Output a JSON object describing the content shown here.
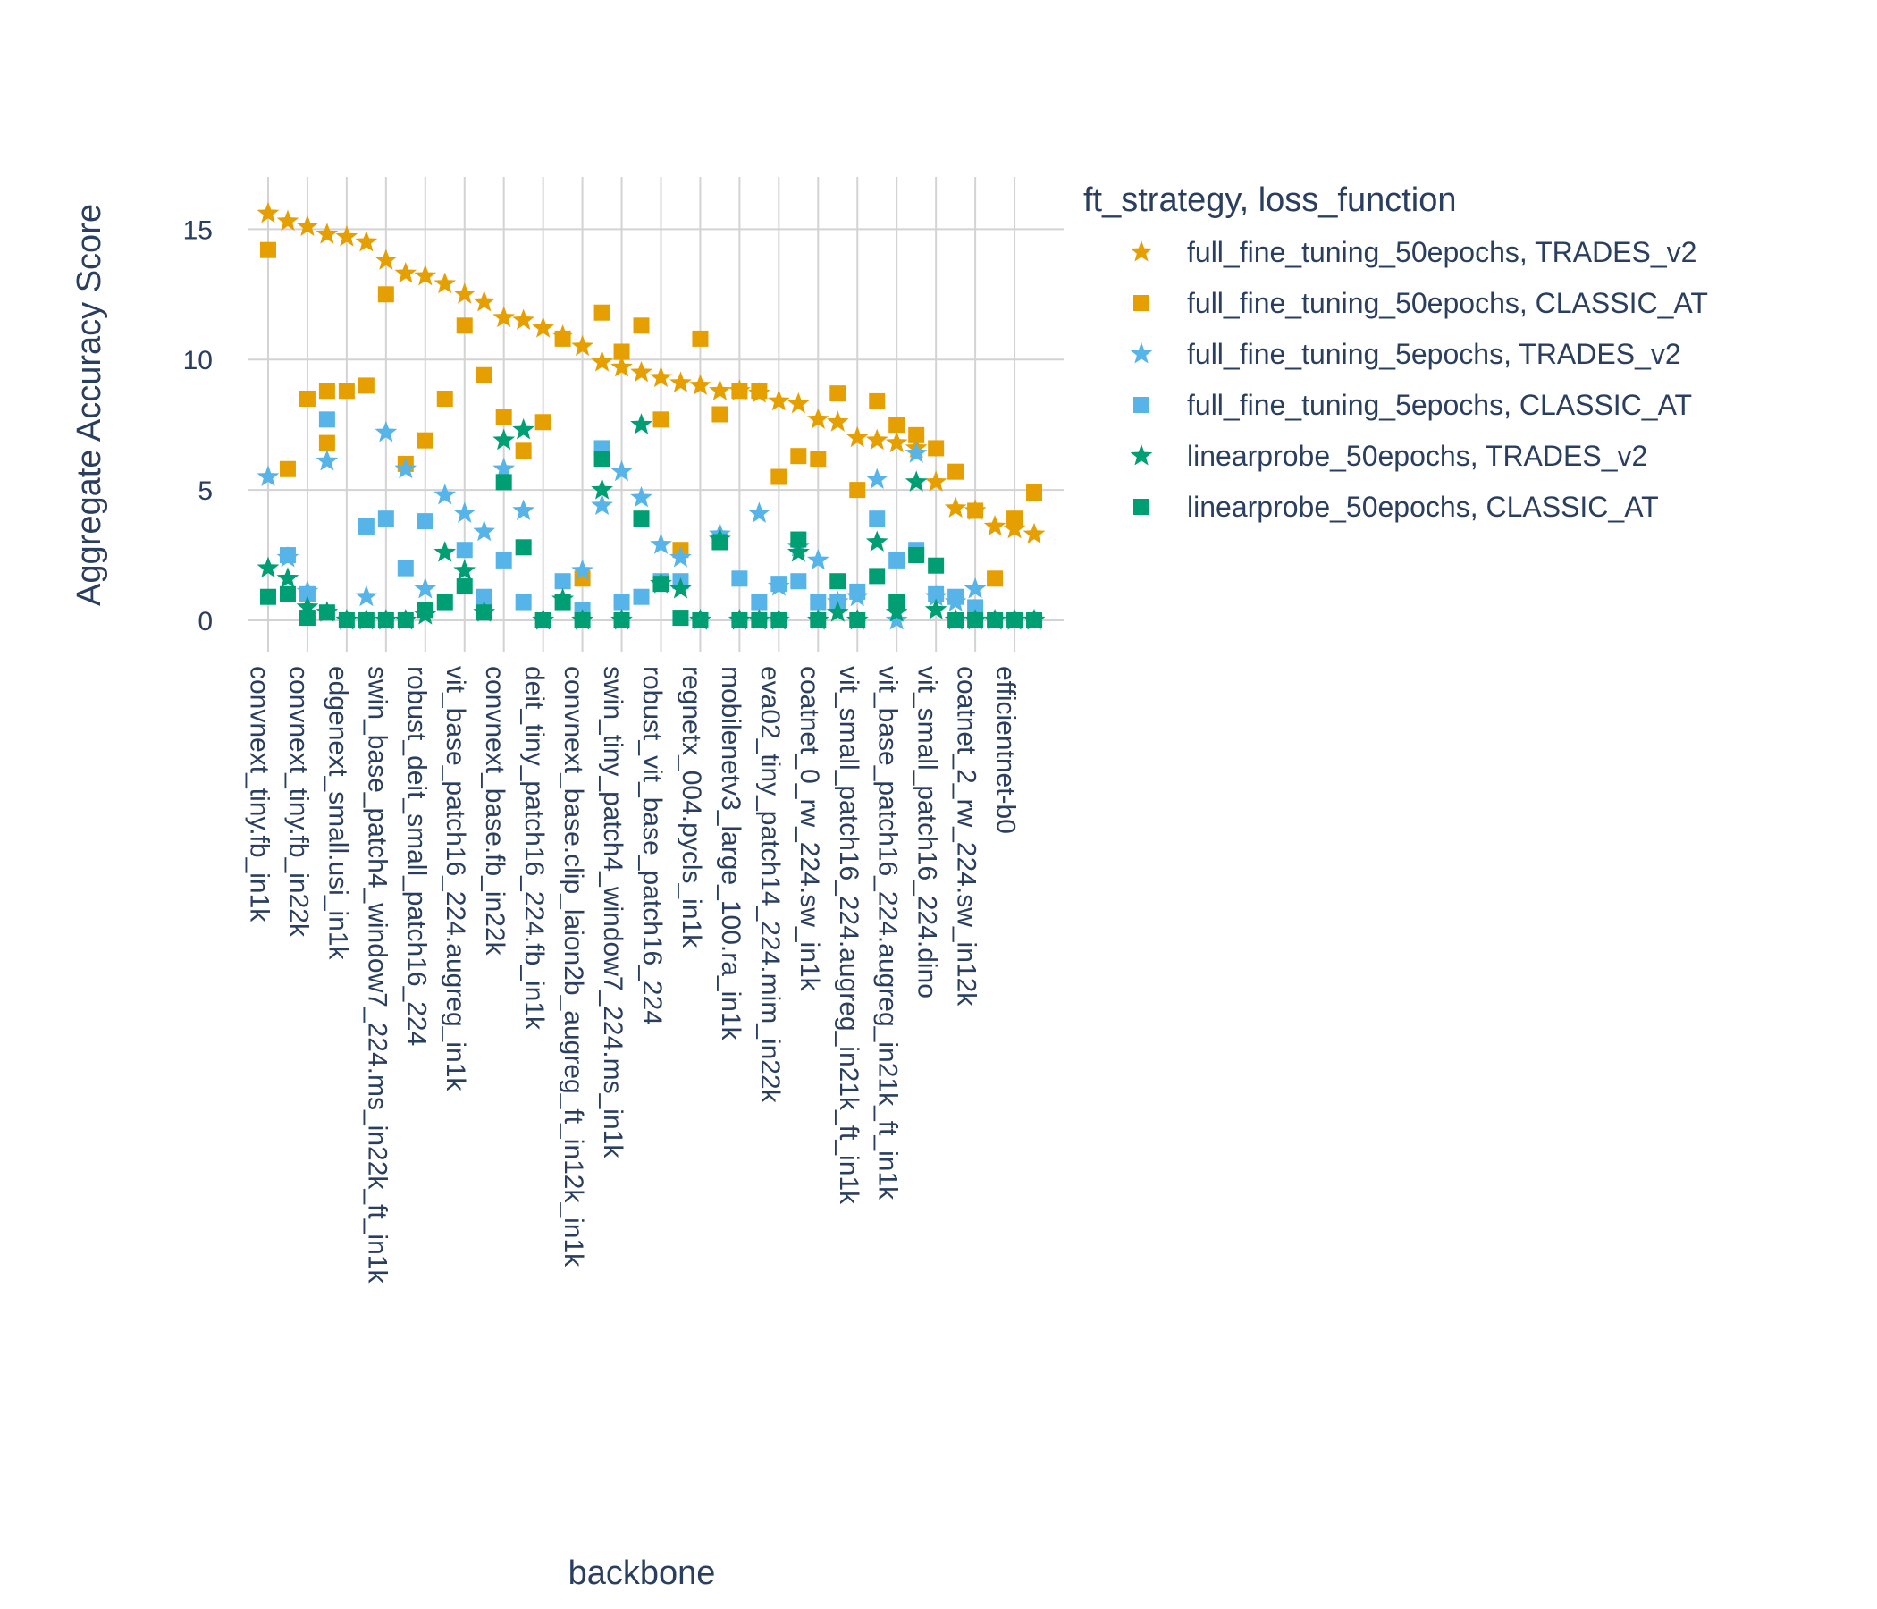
{
  "chart_data": {
    "type": "scatter",
    "title": "",
    "xlabel": "backbone",
    "ylabel": "Aggregate Accuracy Score",
    "ylim": [
      -1.2,
      17
    ],
    "yticks": [
      0,
      5,
      10,
      15
    ],
    "grid": true,
    "legend_position": "right",
    "legend_title": "ft_strategy, loss_function",
    "x_tick_labels": [
      "convnext_tiny.fb_in1k",
      "convnext_tiny.fb_in22k",
      "edgenext_small.usi_in1k",
      "swin_base_patch4_window7_224.ms_in22k_ft_in1k",
      "robust_deit_small_patch16_224",
      "vit_base_patch16_224.augreg_in1k",
      "convnext_base.fb_in22k",
      "deit_tiny_patch16_224.fb_in1k",
      "convnext_base.clip_laion2b_augreg_ft_in12k_in1k",
      "swin_tiny_patch4_window7_224.ms_in1k",
      "robust_vit_base_patch16_224",
      "regnetx_004.pycls_in1k",
      "mobilenetv3_large_100.ra_in1k",
      "eva02_tiny_patch14_224.mim_in22k",
      "coatnet_0_rw_224.sw_in1k",
      "vit_small_patch16_224.augreg_in21k_ft_in1k",
      "vit_base_patch16_224.augreg_in21k_ft_in1k",
      "vit_small_patch16_224.dino",
      "coatnet_2_rw_224.sw_in12k",
      "efficientnet-b0"
    ],
    "x_tick_positions": [
      0,
      2,
      4,
      6,
      8,
      10,
      12,
      14,
      16,
      18,
      20,
      22,
      24,
      26,
      28,
      30,
      32,
      34,
      36,
      38
    ],
    "xlim": [
      -1,
      40.5
    ],
    "series": [
      {
        "name": "full_fine_tuning_50epochs, TRADES_v2",
        "symbol": "star",
        "color": "#e69f00",
        "x": [
          0,
          1,
          2,
          3,
          4,
          5,
          6,
          7,
          8,
          9,
          10,
          11,
          12,
          13,
          14,
          15,
          16,
          17,
          18,
          19,
          20,
          21,
          22,
          23,
          24,
          25,
          26,
          27,
          28,
          29,
          30,
          31,
          32,
          33,
          34,
          35,
          36,
          37,
          38,
          39
        ],
        "y": [
          15.6,
          15.3,
          15.1,
          14.8,
          14.7,
          14.5,
          13.8,
          13.3,
          13.2,
          12.9,
          12.5,
          12.2,
          11.6,
          11.5,
          11.2,
          10.9,
          10.5,
          9.9,
          9.7,
          9.5,
          9.3,
          9.1,
          9.0,
          8.8,
          8.8,
          8.7,
          8.4,
          8.3,
          7.7,
          7.6,
          7.0,
          6.9,
          6.8,
          6.6,
          5.3,
          4.3,
          4.2,
          3.6,
          3.5,
          3.3
        ]
      },
      {
        "name": "full_fine_tuning_50epochs, CLASSIC_AT",
        "symbol": "square",
        "color": "#e69f00",
        "x": [
          0,
          1,
          2,
          3,
          3,
          4,
          5,
          6,
          7,
          8,
          9,
          10,
          11,
          12,
          13,
          14,
          15,
          16,
          17,
          18,
          19,
          20,
          21,
          22,
          23,
          24,
          25,
          26,
          27,
          28,
          29,
          30,
          31,
          32,
          33,
          34,
          35,
          36,
          37,
          38,
          39
        ],
        "y": [
          14.2,
          5.8,
          8.5,
          6.8,
          8.8,
          8.8,
          9.0,
          12.5,
          6.0,
          6.9,
          8.5,
          11.3,
          9.4,
          7.8,
          6.5,
          7.6,
          10.8,
          1.6,
          11.8,
          10.3,
          11.3,
          7.7,
          2.7,
          10.8,
          7.9,
          8.8,
          8.8,
          5.5,
          6.3,
          6.2,
          8.7,
          5.0,
          8.4,
          7.5,
          7.1,
          6.6,
          5.7,
          4.2,
          1.6,
          3.9,
          4.9
        ]
      },
      {
        "name": "full_fine_tuning_5epochs, TRADES_v2",
        "symbol": "star",
        "color": "#56b4e9",
        "x": [
          0,
          1,
          2,
          3,
          4,
          5,
          6,
          7,
          8,
          9,
          10,
          11,
          12,
          13,
          14,
          15,
          16,
          17,
          18,
          19,
          20,
          21,
          22,
          23,
          24,
          25,
          26,
          27,
          28,
          29,
          30,
          31,
          32,
          33,
          34,
          35,
          36,
          37,
          38,
          39
        ],
        "y": [
          5.5,
          2.4,
          1.1,
          6.1,
          0.0,
          0.9,
          7.2,
          5.8,
          1.2,
          4.8,
          4.1,
          3.4,
          5.8,
          4.2,
          0.0,
          0.8,
          1.9,
          4.4,
          5.7,
          4.7,
          2.9,
          2.4,
          0.0,
          3.3,
          0.0,
          4.1,
          1.3,
          2.8,
          2.3,
          0.7,
          0.9,
          5.4,
          0.0,
          6.4,
          0.9,
          0.7,
          1.2,
          0.0,
          0.0,
          0.0
        ]
      },
      {
        "name": "full_fine_tuning_5epochs, CLASSIC_AT",
        "symbol": "square",
        "color": "#56b4e9",
        "x": [
          1,
          2,
          3,
          5,
          6,
          7,
          8,
          10,
          11,
          12,
          13,
          15,
          16,
          17,
          18,
          19,
          20,
          21,
          22,
          24,
          25,
          26,
          27,
          28,
          29,
          30,
          31,
          32,
          33,
          34,
          35,
          36
        ],
        "y": [
          2.5,
          1.0,
          7.7,
          3.6,
          3.9,
          2.0,
          3.8,
          2.7,
          0.9,
          2.3,
          0.7,
          1.5,
          0.4,
          6.6,
          0.7,
          0.9,
          1.5,
          1.5,
          0.0,
          1.6,
          0.7,
          1.4,
          1.5,
          0.7,
          0.7,
          1.1,
          3.9,
          2.3,
          2.7,
          1.0,
          0.9,
          0.5
        ]
      },
      {
        "name": "linearprobe_50epochs, TRADES_v2",
        "symbol": "star",
        "color": "#009e73",
        "x": [
          0,
          1,
          2,
          3,
          4,
          5,
          6,
          7,
          8,
          9,
          10,
          11,
          12,
          13,
          14,
          15,
          16,
          17,
          18,
          19,
          20,
          21,
          22,
          23,
          24,
          25,
          26,
          27,
          28,
          29,
          30,
          31,
          32,
          33,
          34,
          35,
          36,
          37,
          38,
          39
        ],
        "y": [
          2.0,
          1.6,
          0.5,
          0.3,
          0.0,
          0.0,
          0.0,
          0.0,
          0.2,
          2.6,
          1.9,
          0.3,
          6.9,
          7.3,
          0.0,
          0.8,
          0.0,
          5.0,
          0.0,
          7.5,
          1.4,
          1.2,
          0.0,
          3.1,
          0.0,
          0.0,
          0.0,
          2.6,
          0.0,
          0.3,
          0.0,
          3.0,
          0.3,
          5.3,
          0.4,
          0.0,
          0.0,
          0.0,
          0.0,
          0.0
        ]
      },
      {
        "name": "linearprobe_50epochs, CLASSIC_AT",
        "symbol": "square",
        "color": "#009e73",
        "x": [
          0,
          1,
          2,
          3,
          4,
          5,
          6,
          7,
          8,
          9,
          10,
          11,
          12,
          13,
          14,
          15,
          16,
          17,
          18,
          19,
          20,
          21,
          22,
          23,
          24,
          25,
          26,
          27,
          28,
          29,
          30,
          31,
          32,
          33,
          34,
          35,
          36,
          37,
          38,
          39
        ],
        "y": [
          0.9,
          1.0,
          0.1,
          0.3,
          0.0,
          0.0,
          0.0,
          0.0,
          0.4,
          0.7,
          1.3,
          0.3,
          5.3,
          2.8,
          0.0,
          0.7,
          0.0,
          6.2,
          0.0,
          3.9,
          1.4,
          0.1,
          0.0,
          3.0,
          0.0,
          0.0,
          0.0,
          3.1,
          0.0,
          1.5,
          0.0,
          1.7,
          0.7,
          2.5,
          2.1,
          0.0,
          0.0,
          0.0,
          0.0,
          0.0
        ]
      }
    ]
  }
}
